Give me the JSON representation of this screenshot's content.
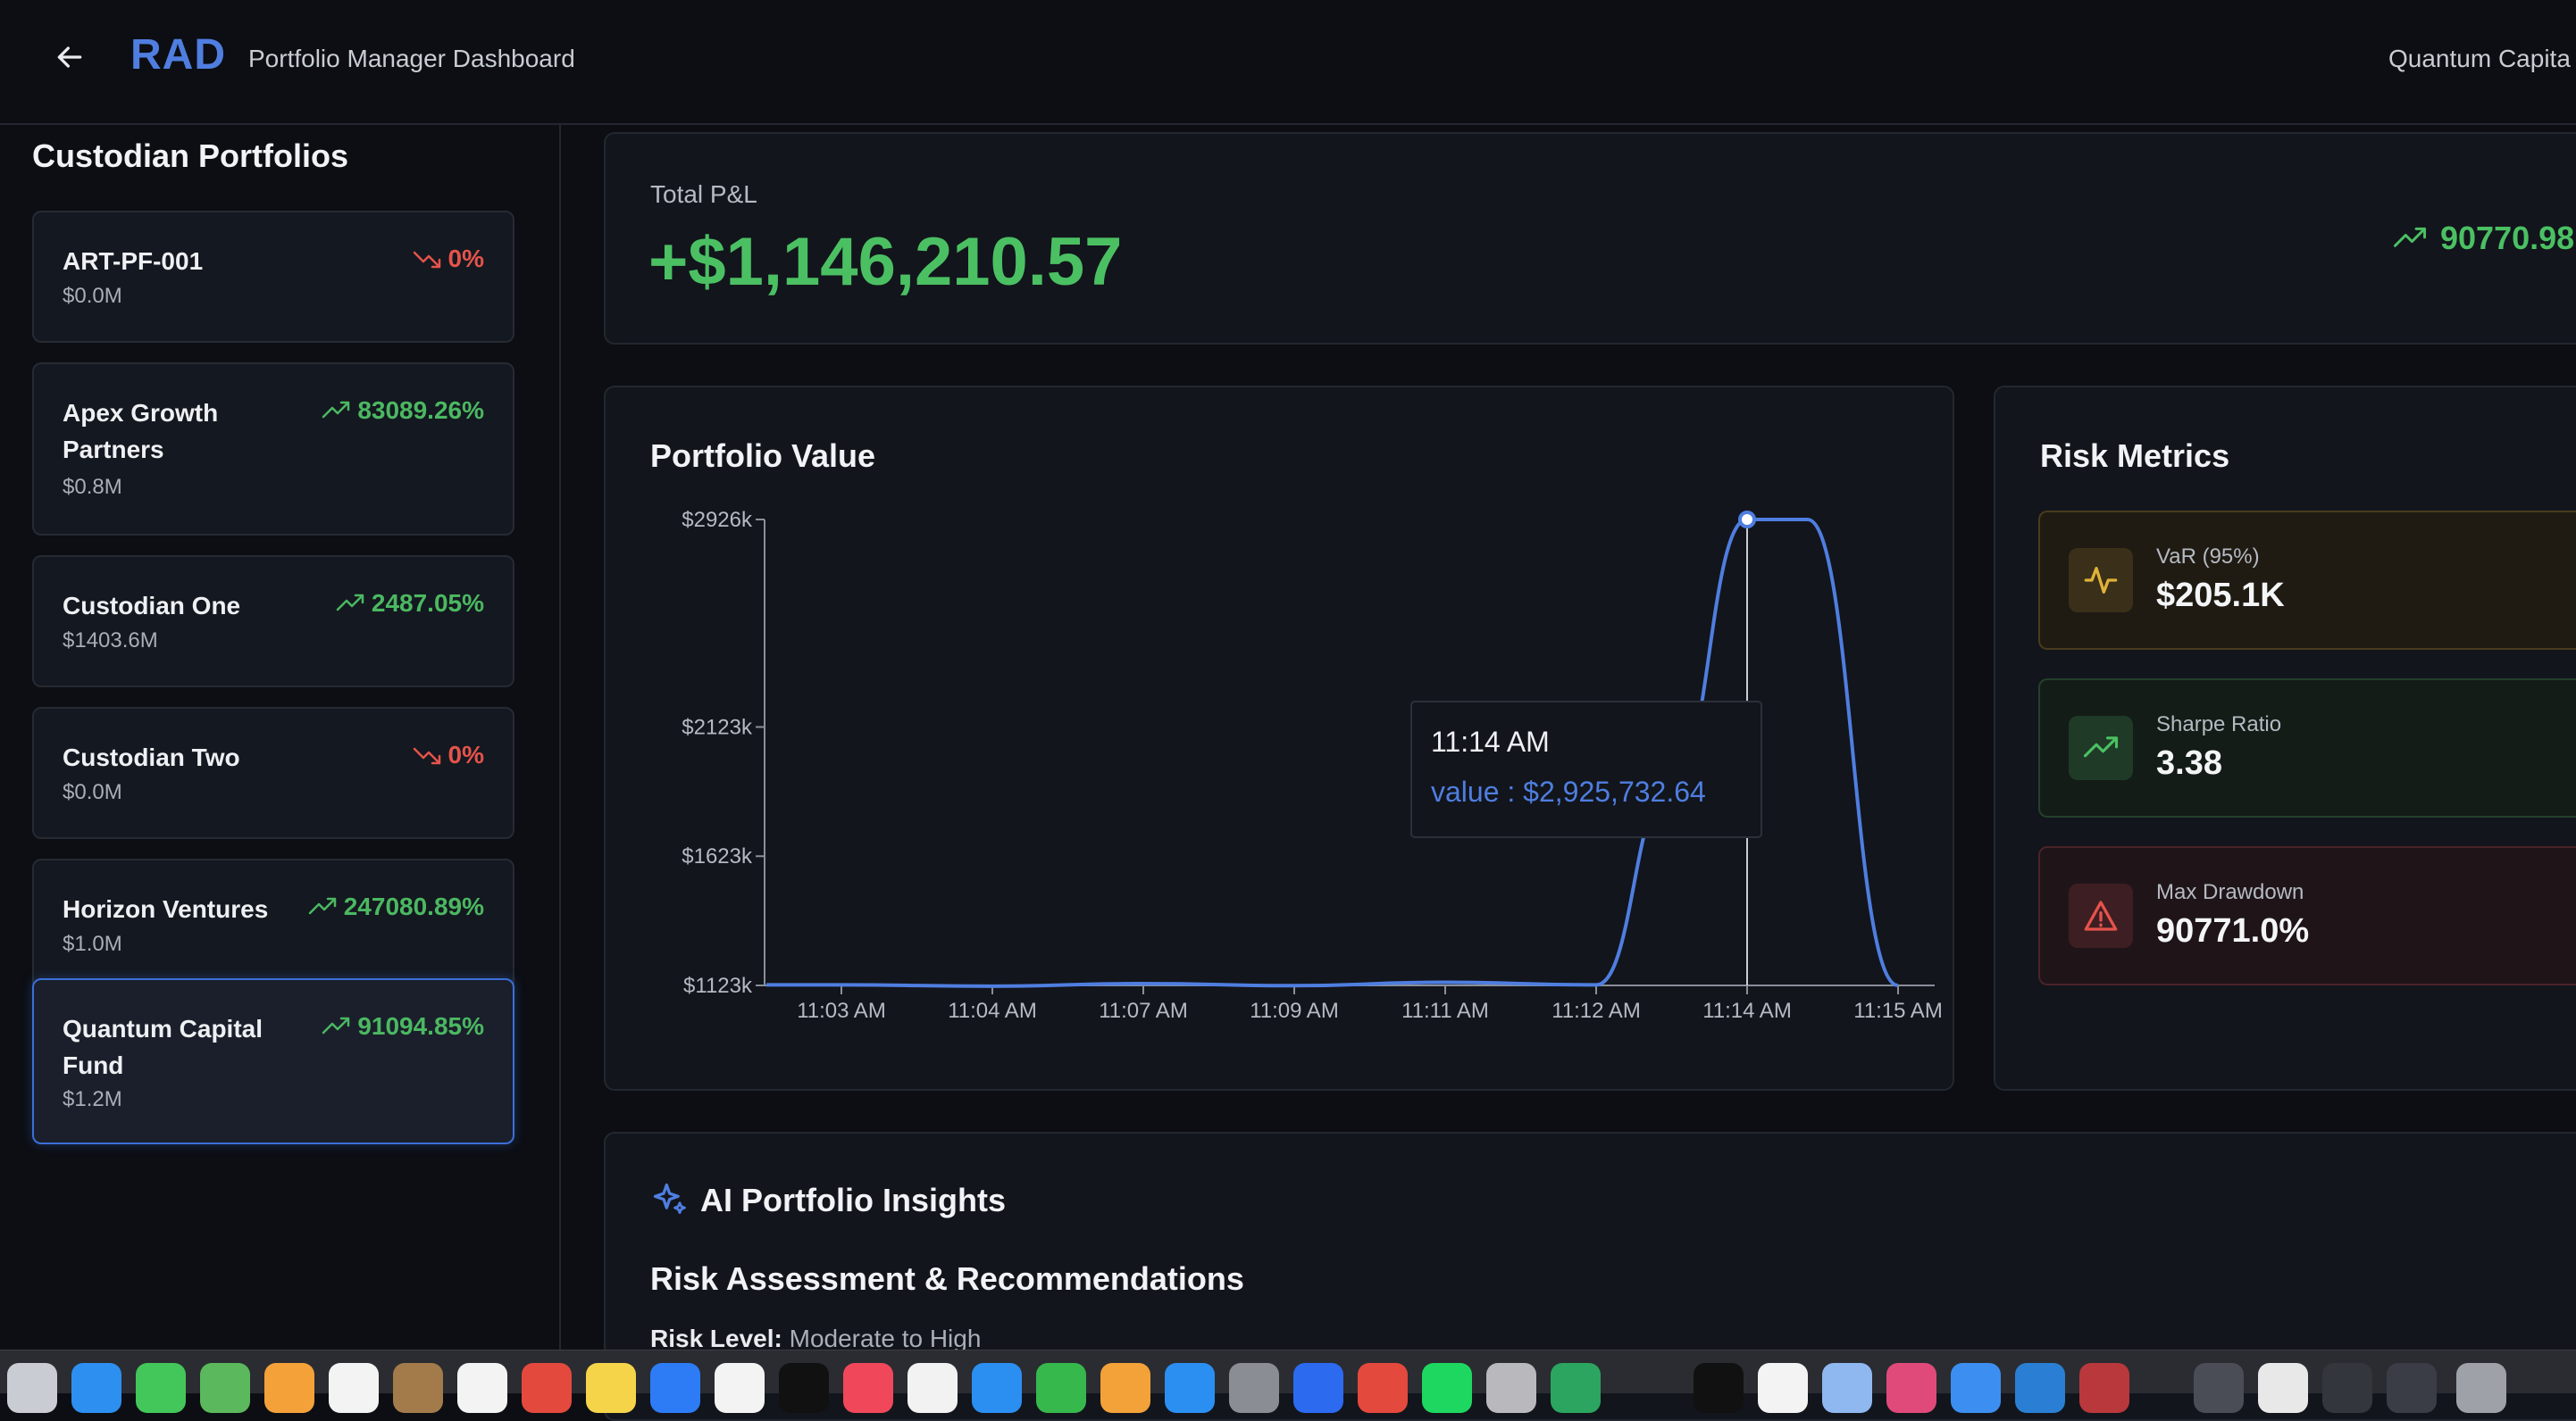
{
  "header": {
    "logo": "RAD",
    "subtitle": "Portfolio Manager Dashboard",
    "client": "Quantum Capita"
  },
  "sidebar": {
    "title": "Custodian Portfolios",
    "portfolios": [
      {
        "name": "ART-PF-001",
        "value": "$0.0M",
        "change": "0%",
        "direction": "down"
      },
      {
        "name": "Apex Growth Partners",
        "value": "$0.8M",
        "change": "83089.26%",
        "direction": "up"
      },
      {
        "name": "Custodian One",
        "value": "$1403.6M",
        "change": "2487.05%",
        "direction": "up"
      },
      {
        "name": "Custodian Two",
        "value": "$0.0M",
        "change": "0%",
        "direction": "down"
      },
      {
        "name": "Horizon Ventures",
        "value": "$1.0M",
        "change": "247080.89%",
        "direction": "up"
      },
      {
        "name": "Quantum Capital Fund",
        "value": "$1.2M",
        "change": "91094.85%",
        "direction": "up",
        "selected": true
      }
    ]
  },
  "pnl": {
    "label": "Total P&L",
    "value": "+$1,146,210.57",
    "change": "90770.98"
  },
  "portfolio_chart": {
    "title": "Portfolio Value",
    "tooltip": {
      "time": "11:14 AM",
      "text": "value : $2,925,732.64"
    }
  },
  "chart_data": {
    "type": "line",
    "title": "Portfolio Value",
    "x": [
      "11:03 AM",
      "11:04 AM",
      "11:07 AM",
      "11:09 AM",
      "11:11 AM",
      "11:12 AM",
      "11:14 AM",
      "11:15 AM"
    ],
    "y_ticks": [
      "$1123k",
      "$1623k",
      "$2123k",
      "$2926k"
    ],
    "ylim": [
      1123,
      2926
    ],
    "series": [
      {
        "values": [
          [
            0,
            1125
          ],
          [
            1,
            1120
          ],
          [
            2,
            1130
          ],
          [
            3,
            1122
          ],
          [
            4,
            1135
          ],
          [
            5,
            1125
          ],
          [
            5.5,
            1900
          ],
          [
            6,
            2926
          ],
          [
            6.4,
            2926
          ],
          [
            7,
            1123
          ]
        ]
      }
    ],
    "highlight": {
      "x": "11:14 AM",
      "value": 2925732.64
    },
    "line_color": "#4f7ee0"
  },
  "risk": {
    "title": "Risk Metrics",
    "metrics": [
      {
        "label": "VaR (95%)",
        "value": "$205.1K",
        "icon": "activity-icon",
        "tone": "amber"
      },
      {
        "label": "Sharpe Ratio",
        "value": "3.38",
        "icon": "trending-up-icon",
        "tone": "green"
      },
      {
        "label": "Max Drawdown",
        "value": "90771.0%",
        "icon": "alert-triangle-icon",
        "tone": "red"
      }
    ]
  },
  "insights": {
    "title": "AI Portfolio Insights",
    "subtitle": "Risk Assessment & Recommendations",
    "risk_label": "Risk Level:",
    "risk_value": "Moderate to High"
  },
  "colors": {
    "accent": "#4f7ee0",
    "positive": "#4bc063",
    "negative": "#e5534b"
  }
}
